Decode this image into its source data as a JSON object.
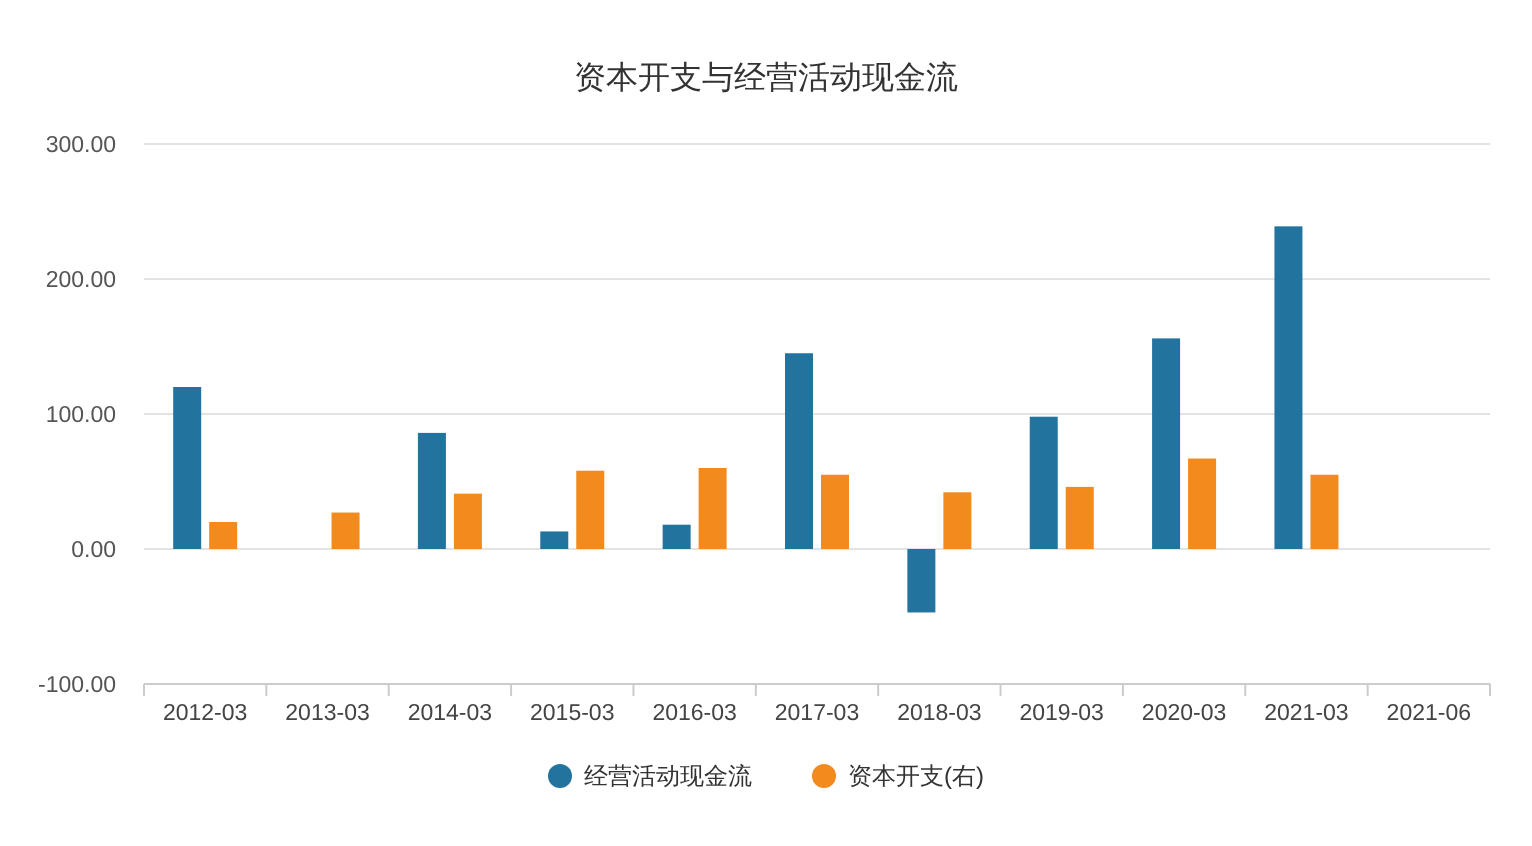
{
  "chart_data": {
    "type": "bar",
    "title": "资本开支与经营活动现金流",
    "categories": [
      "2012-03",
      "2013-03",
      "2014-03",
      "2015-03",
      "2016-03",
      "2017-03",
      "2018-03",
      "2019-03",
      "2020-03",
      "2021-03",
      "2021-06"
    ],
    "series": [
      {
        "name": "经营活动现金流",
        "color": "#22739e",
        "values": [
          120,
          null,
          86,
          13,
          18,
          145,
          -47,
          98,
          156,
          239,
          null
        ]
      },
      {
        "name": "资本开支(右)",
        "color": "#f28a1e",
        "values": [
          20,
          27,
          41,
          58,
          60,
          55,
          42,
          46,
          67,
          55,
          null
        ]
      }
    ],
    "ylim": [
      -100,
      300
    ],
    "yticks": [
      {
        "value": -100,
        "label": "-100.00"
      },
      {
        "value": 0,
        "label": "0.00"
      },
      {
        "value": 100,
        "label": "100.00"
      },
      {
        "value": 200,
        "label": "200.00"
      },
      {
        "value": 300,
        "label": "300.00"
      }
    ],
    "grid": "y",
    "legend": "bottom"
  }
}
